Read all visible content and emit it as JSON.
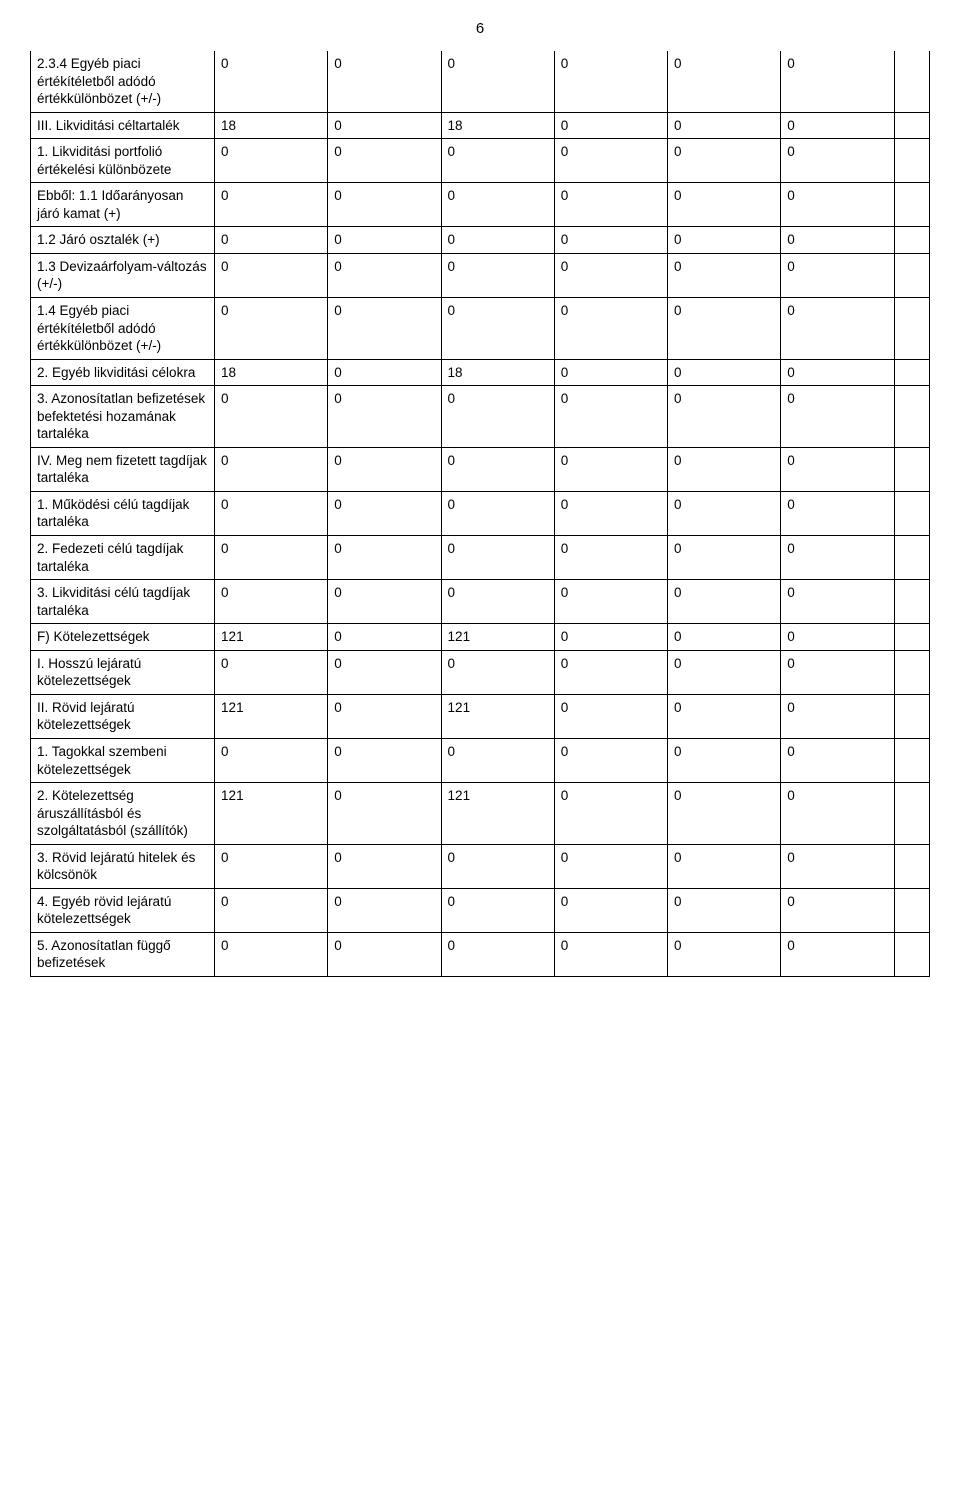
{
  "page_number": "6",
  "table": {
    "col_count": 8,
    "rows": [
      {
        "label": "2.3.4 Egyéb piaci értékítéletből adódó értékkülönbözet (+/-)",
        "vals": [
          "0",
          "0",
          "0",
          "0",
          "0",
          "0"
        ]
      },
      {
        "label": "III. Likviditási céltartalék",
        "vals": [
          "18",
          "0",
          "18",
          "0",
          "0",
          "0"
        ]
      },
      {
        "label": "1. Likviditási portfolió értékelési különbözete",
        "vals": [
          "0",
          "0",
          "0",
          "0",
          "0",
          "0"
        ]
      },
      {
        "label": "Ebből: 1.1 Időarányosan járó kamat (+)",
        "vals": [
          "0",
          "0",
          "0",
          "0",
          "0",
          "0"
        ]
      },
      {
        "label": "1.2 Járó osztalék (+)",
        "vals": [
          "0",
          "0",
          "0",
          "0",
          "0",
          "0"
        ]
      },
      {
        "label": "1.3 Devizaárfolyam-változás (+/-)",
        "vals": [
          "0",
          "0",
          "0",
          "0",
          "0",
          "0"
        ]
      },
      {
        "label": "1.4 Egyéb piaci értékítéletből adódó értékkülönbözet (+/-)",
        "vals": [
          "0",
          "0",
          "0",
          "0",
          "0",
          "0"
        ]
      },
      {
        "label": "2. Egyéb likviditási célokra",
        "vals": [
          "18",
          "0",
          "18",
          "0",
          "0",
          "0"
        ]
      },
      {
        "label": "3. Azonosítatlan befizetések befektetési hozamának tartaléka",
        "vals": [
          "0",
          "0",
          "0",
          "0",
          "0",
          "0"
        ]
      },
      {
        "label": "IV. Meg nem fizetett tagdíjak tartaléka",
        "vals": [
          "0",
          "0",
          "0",
          "0",
          "0",
          "0"
        ]
      },
      {
        "label": "1. Működési célú tagdíjak tartaléka",
        "vals": [
          "0",
          "0",
          "0",
          "0",
          "0",
          "0"
        ]
      },
      {
        "label": "2. Fedezeti célú tagdíjak tartaléka",
        "vals": [
          "0",
          "0",
          "0",
          "0",
          "0",
          "0"
        ]
      },
      {
        "label": "3. Likviditási célú tagdíjak tartaléka",
        "vals": [
          "0",
          "0",
          "0",
          "0",
          "0",
          "0"
        ]
      },
      {
        "label": "F) Kötelezettségek",
        "vals": [
          "121",
          "0",
          "121",
          "0",
          "0",
          "0"
        ]
      },
      {
        "label": "I. Hosszú lejáratú kötelezettségek",
        "vals": [
          "0",
          "0",
          "0",
          "0",
          "0",
          "0"
        ]
      },
      {
        "label": "II. Rövid lejáratú kötelezettségek",
        "vals": [
          "121",
          "0",
          "121",
          "0",
          "0",
          "0"
        ]
      },
      {
        "label": "1. Tagokkal szembeni kötelezettségek",
        "vals": [
          "0",
          "0",
          "0",
          "0",
          "0",
          "0"
        ]
      },
      {
        "label": "2. Kötelezettség áruszállításból és szolgáltatásból (szállítók)",
        "vals": [
          "121",
          "0",
          "121",
          "0",
          "0",
          "0"
        ]
      },
      {
        "label": "3. Rövid lejáratú hitelek és kölcsönök",
        "vals": [
          "0",
          "0",
          "0",
          "0",
          "0",
          "0"
        ]
      },
      {
        "label": "4. Egyéb rövid lejáratú kötelezettségek",
        "vals": [
          "0",
          "0",
          "0",
          "0",
          "0",
          "0"
        ]
      },
      {
        "label": "5. Azonosítatlan függő befizetések",
        "vals": [
          "0",
          "0",
          "0",
          "0",
          "0",
          "0"
        ]
      }
    ]
  }
}
